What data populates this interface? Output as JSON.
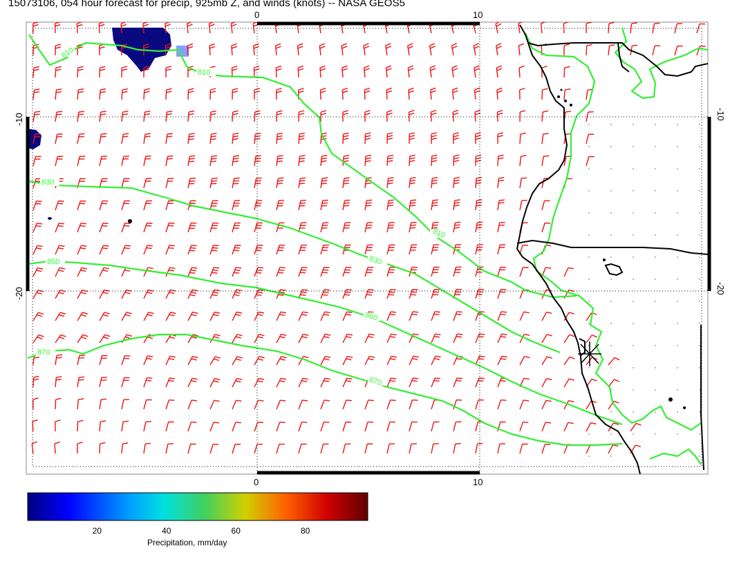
{
  "title": "15073106, 054 hour forecast for precip, 925mb Z, and winds (knots) -- NASA GEOS5",
  "map": {
    "x_axis_ticks": [
      {
        "value": 0,
        "label": "0"
      },
      {
        "value": 10,
        "label": "10"
      }
    ],
    "y_axis_ticks": [
      {
        "value": -10,
        "label": "-10"
      },
      {
        "value": -20,
        "label": "-20"
      }
    ],
    "height_contours": [
      {
        "label": "810"
      },
      {
        "label": "830"
      },
      {
        "label": "850"
      },
      {
        "label": "870"
      }
    ],
    "colors": {
      "contour": "#33ee33",
      "wind_barb": "#ee1111",
      "coastline": "#000000",
      "grid": "#000000",
      "precip_max": "#0a0a80"
    },
    "center_marker": "asterisk-icon"
  },
  "colorbar": {
    "label": "Precipitation, mm/day",
    "ticks": [
      {
        "value": 20,
        "label": "20"
      },
      {
        "value": 40,
        "label": "40"
      },
      {
        "value": 60,
        "label": "60"
      },
      {
        "value": 80,
        "label": "80"
      }
    ],
    "range": [
      0,
      98
    ]
  }
}
